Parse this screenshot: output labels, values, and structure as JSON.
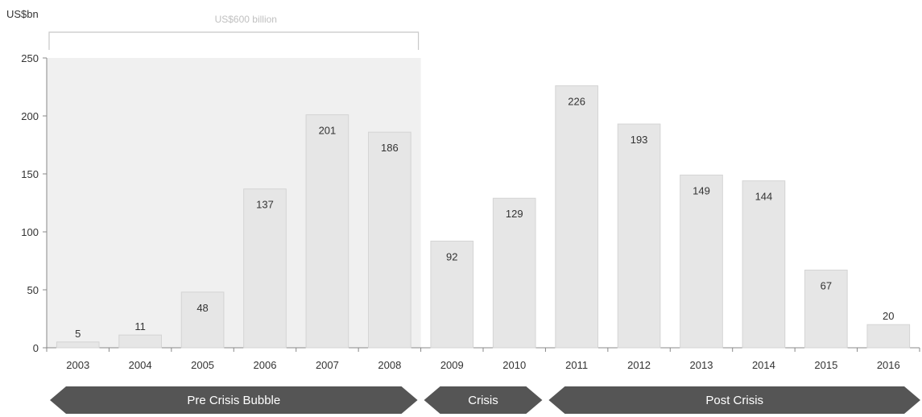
{
  "chart_data": {
    "type": "bar",
    "ylabel": "US$bn",
    "bracket_label": "US$600 billion",
    "categories": [
      "2003",
      "2004",
      "2005",
      "2006",
      "2007",
      "2008",
      "2009",
      "2010",
      "2011",
      "2012",
      "2013",
      "2014",
      "2015",
      "2016"
    ],
    "values": [
      5,
      11,
      48,
      137,
      201,
      186,
      92,
      129,
      226,
      193,
      149,
      144,
      67,
      20
    ],
    "value_labels": [
      "5",
      "11",
      "48",
      "137",
      "201",
      "186",
      "92",
      "129",
      "226",
      "193",
      "149",
      "144",
      "67",
      "20"
    ],
    "ylim": [
      0,
      250
    ],
    "yticks": [
      0,
      50,
      100,
      150,
      200,
      250
    ],
    "ytick_labels": [
      "0",
      "50",
      "100",
      "150",
      "200",
      "250"
    ],
    "grid": false,
    "highlight_range": [
      "2003",
      "2008"
    ],
    "phases": [
      {
        "label": "Pre Crisis Bubble",
        "from": "2003",
        "to": "2008"
      },
      {
        "label": "Crisis",
        "from": "2009",
        "to": "2010"
      },
      {
        "label": "Post Crisis",
        "from": "2011",
        "to": "2016"
      }
    ],
    "colors": {
      "bar": "#e6e6e6",
      "bar_stroke": "#d4d4d4",
      "highlight": "#f0f0f0",
      "arrow": "#555555",
      "text": "#333333"
    }
  }
}
